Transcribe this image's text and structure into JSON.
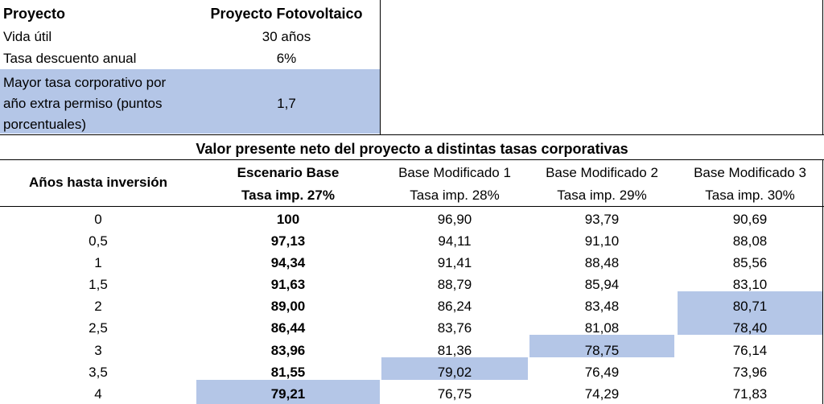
{
  "params": {
    "header_label": "Proyecto",
    "header_value": "Proyecto Fotovoltaico",
    "rows": [
      {
        "label": "Vida útil",
        "value": "30 años"
      },
      {
        "label": "Tasa descuento anual",
        "value": "6%"
      }
    ],
    "extra": {
      "label_lines": [
        "Mayor tasa corporativo por",
        "año extra permiso (puntos",
        "porcentuales)"
      ],
      "value": "1,7"
    }
  },
  "table": {
    "title": "Valor presente neto del proyecto a distintas tasas corporativas",
    "columns": [
      {
        "line1": "Años hasta inversión",
        "line2": ""
      },
      {
        "line1": "Escenario Base",
        "line2": "Tasa imp. 27%"
      },
      {
        "line1": "Base Modificado 1",
        "line2": "Tasa imp. 28%"
      },
      {
        "line1": "Base Modificado 2",
        "line2": "Tasa imp. 29%"
      },
      {
        "line1": "Base Modificado 3",
        "line2": "Tasa imp. 30%"
      }
    ],
    "rows": [
      [
        "0",
        "100",
        "96,90",
        "93,79",
        "90,69"
      ],
      [
        "0,5",
        "97,13",
        "94,11",
        "91,10",
        "88,08"
      ],
      [
        "1",
        "94,34",
        "91,41",
        "88,48",
        "85,56"
      ],
      [
        "1,5",
        "91,63",
        "88,79",
        "85,94",
        "83,10"
      ],
      [
        "2",
        "89,00",
        "86,24",
        "83,48",
        "80,71"
      ],
      [
        "2,5",
        "86,44",
        "83,76",
        "81,08",
        "78,40"
      ],
      [
        "3",
        "83,96",
        "81,36",
        "78,75",
        "76,14"
      ],
      [
        "3,5",
        "81,55",
        "79,02",
        "76,49",
        "73,96"
      ],
      [
        "4",
        "79,21",
        "76,75",
        "74,29",
        "71,83"
      ]
    ],
    "highlight_color": "#b4c6e7"
  }
}
